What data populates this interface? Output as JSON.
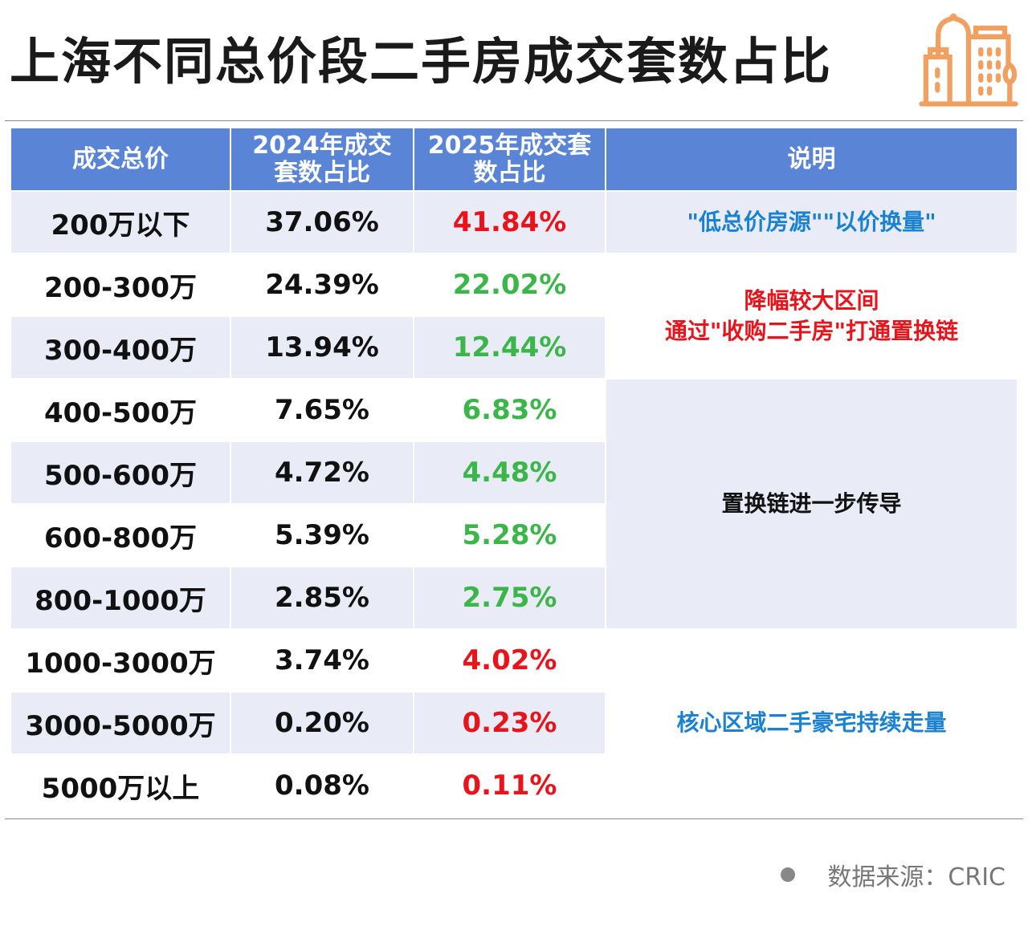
{
  "title": "上海不同总价段二手房成交套数占比",
  "source": "数据来源：CRIC",
  "colors": {
    "header": "#5a84d6",
    "shade": "#e9ecf6",
    "increase": "#e8141c",
    "decrease": "#3cb54a",
    "note_blue": "#1a82d0",
    "note_red": "#e8141c",
    "note_black": "#111111",
    "logo": "#f0a060"
  },
  "chart_data": {
    "type": "table",
    "title": "上海不同总价段二手房成交套数占比",
    "columns": [
      "成交总价",
      "2024年成交套数占比",
      "2025年成交套数占比",
      "说明"
    ],
    "header_lines": [
      [
        "成交总价"
      ],
      [
        "2024年成交",
        "套数占比"
      ],
      [
        "2025年成交套",
        "数占比"
      ],
      [
        "说明"
      ]
    ],
    "rows": [
      {
        "range": "200万以下",
        "y2024": "37.06%",
        "y2025": "41.84%",
        "trend": "up"
      },
      {
        "range": "200-300万",
        "y2024": "24.39%",
        "y2025": "22.02%",
        "trend": "down"
      },
      {
        "range": "300-400万",
        "y2024": "13.94%",
        "y2025": "12.44%",
        "trend": "down"
      },
      {
        "range": "400-500万",
        "y2024": "7.65%",
        "y2025": "6.83%",
        "trend": "down"
      },
      {
        "range": "500-600万",
        "y2024": "4.72%",
        "y2025": "4.48%",
        "trend": "down"
      },
      {
        "range": "600-800万",
        "y2024": "5.39%",
        "y2025": "5.28%",
        "trend": "down"
      },
      {
        "range": "800-1000万",
        "y2024": "2.85%",
        "y2025": "2.75%",
        "trend": "down"
      },
      {
        "range": "1000-3000万",
        "y2024": "3.74%",
        "y2025": "4.02%",
        "trend": "up"
      },
      {
        "range": "3000-5000万",
        "y2024": "0.20%",
        "y2025": "0.23%",
        "trend": "up"
      },
      {
        "range": "5000万以上",
        "y2024": "0.08%",
        "y2025": "0.11%",
        "trend": "up"
      }
    ],
    "notes": [
      {
        "rows": [
          0,
          0
        ],
        "lines": [
          "\"低总价房源\"\"以价换量\""
        ],
        "color": "blue",
        "shaded": true
      },
      {
        "rows": [
          1,
          2
        ],
        "lines": [
          "降幅较大区间",
          "通过\"收购二手房\"打通置换链"
        ],
        "color": "red",
        "shaded": false
      },
      {
        "rows": [
          3,
          6
        ],
        "lines": [
          "置换链进一步传导"
        ],
        "color": "black",
        "shaded": true
      },
      {
        "rows": [
          7,
          9
        ],
        "lines": [
          "核心区域二手豪宅持续走量"
        ],
        "color": "blue",
        "shaded": false
      }
    ]
  }
}
